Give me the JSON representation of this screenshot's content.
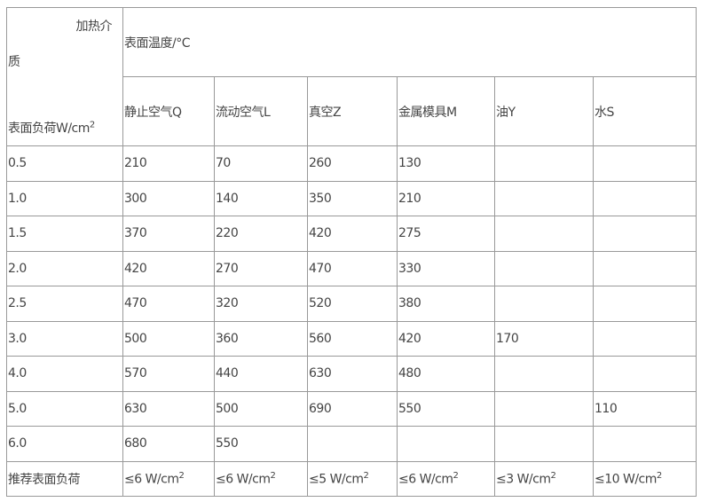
{
  "corner": {
    "top": "加热介",
    "mid": "质",
    "bottom": "表面负荷W/cm",
    "bottom_sup": "2"
  },
  "group_header": "表面温度/°C",
  "columns": [
    "静止空气Q",
    "流动空气L",
    "真空Z",
    "金属模具M",
    "油Y",
    "水S"
  ],
  "rows": [
    [
      "0.5",
      "210",
      "70",
      "260",
      "130",
      "",
      ""
    ],
    [
      "1.0",
      "300",
      "140",
      "350",
      "210",
      "",
      ""
    ],
    [
      "1.5",
      "370",
      "220",
      "420",
      "275",
      "",
      ""
    ],
    [
      "2.0",
      "420",
      "270",
      "470",
      "330",
      "",
      ""
    ],
    [
      "2.5",
      "470",
      "320",
      "520",
      "380",
      "",
      ""
    ],
    [
      "3.0",
      "500",
      "360",
      "560",
      "420",
      "170",
      ""
    ],
    [
      "4.0",
      "570",
      "440",
      "630",
      "480",
      "",
      ""
    ],
    [
      "5.0",
      "630",
      "500",
      "690",
      "550",
      "",
      "110"
    ],
    [
      "6.0",
      "680",
      "550",
      "",
      "",
      "",
      ""
    ]
  ],
  "recommended": {
    "label": "推荐表面负荷",
    "values": [
      "≤6 W/cm",
      "≤6 W/cm",
      "≤5 W/cm",
      "≤6 W/cm",
      "≤3 W/cm",
      "≤10 W/cm"
    ],
    "sup": "2"
  }
}
